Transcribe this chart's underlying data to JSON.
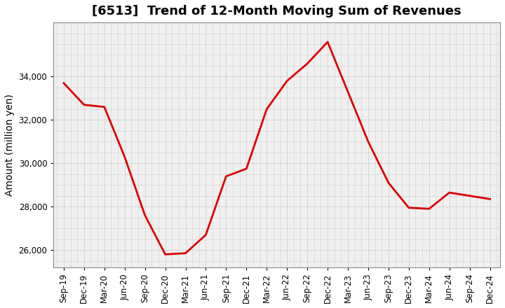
{
  "title": "[6513]  Trend of 12-Month Moving Sum of Revenues",
  "ylabel": "Amount (million yen)",
  "line_color": "#dd0000",
  "line_width": 2.0,
  "background_color": "#ffffff",
  "plot_bg_color": "#f0f0f0",
  "grid_color": "#aaaaaa",
  "x_labels": [
    "Sep-19",
    "Dec-19",
    "Mar-20",
    "Jun-20",
    "Sep-20",
    "Dec-20",
    "Mar-21",
    "Jun-21",
    "Sep-21",
    "Dec-21",
    "Mar-22",
    "Jun-22",
    "Sep-22",
    "Dec-22",
    "Mar-23",
    "Jun-23",
    "Sep-23",
    "Dec-23",
    "Mar-24",
    "Jun-24",
    "Sep-24",
    "Dec-24"
  ],
  "y_values": [
    33700,
    32700,
    32600,
    30300,
    27600,
    25800,
    25850,
    26700,
    29400,
    29750,
    32500,
    33800,
    34600,
    35600,
    33300,
    31000,
    29100,
    27950,
    27900,
    28650,
    28500,
    28350
  ],
  "ylim": [
    25200,
    36500
  ],
  "yticks": [
    26000,
    28000,
    30000,
    32000,
    34000
  ],
  "title_fontsize": 13,
  "tick_fontsize": 8.5,
  "ylabel_fontsize": 10
}
